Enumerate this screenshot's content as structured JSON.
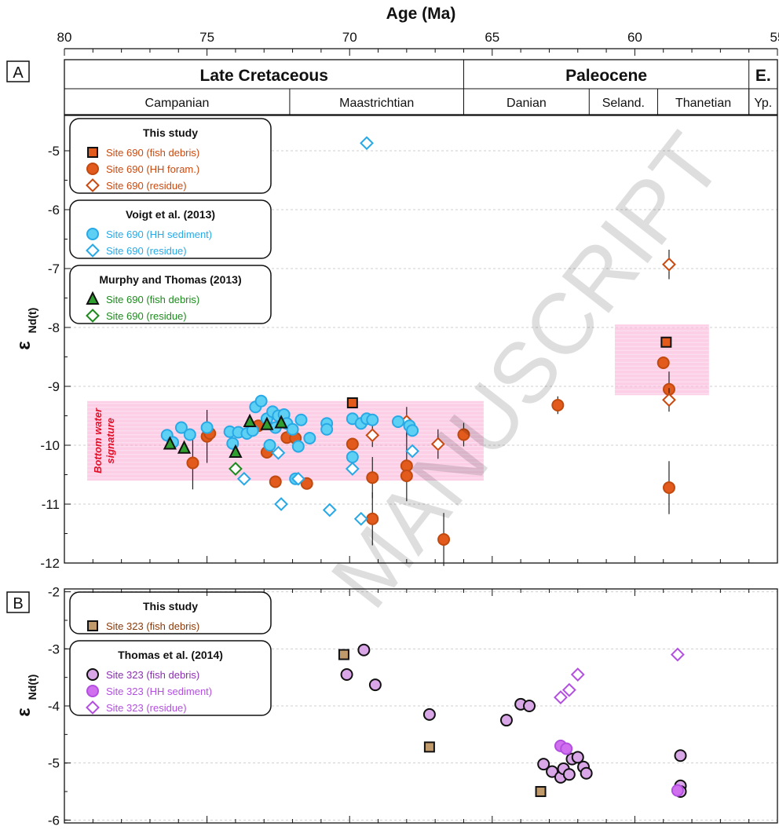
{
  "watermark": "MANUSCRIPT",
  "chart_data": [
    {
      "panel": "A",
      "type": "scatter",
      "x_axis_label": "Age (Ma)",
      "x_ticks": [
        80,
        75,
        70,
        65,
        60,
        55
      ],
      "xlim": [
        80,
        55
      ],
      "ylabel_main": "ε",
      "ylabel_sub": "Nd(t)",
      "y_ticks": [
        -5,
        -6,
        -7,
        -8,
        -9,
        -10,
        -11,
        -12
      ],
      "ylim": [
        -12,
        -4.4
      ],
      "grid": "horizontal",
      "legend_placement": "left",
      "epochs": [
        {
          "label": "Late Cretaceous",
          "from": 80,
          "to": 66
        },
        {
          "label": "Paleocene",
          "from": 66,
          "to": 56
        },
        {
          "label": "E.",
          "from": 56,
          "to": 55
        }
      ],
      "stages": [
        {
          "label": "Campanian",
          "from": 80,
          "to": 72.1
        },
        {
          "label": "Maastrichtian",
          "from": 72.1,
          "to": 66
        },
        {
          "label": "Danian",
          "from": 66,
          "to": 61.6
        },
        {
          "label": "Seland.",
          "from": 61.6,
          "to": 59.2
        },
        {
          "label": "Thanetian",
          "from": 59.2,
          "to": 56
        },
        {
          "label": "Yp.",
          "from": 56,
          "to": 55
        }
      ],
      "bands": [
        {
          "x": [
            79.2,
            65.3
          ],
          "y": [
            -10.6,
            -9.25
          ],
          "label": "Bottom water signature",
          "label_line1": "Bottom water",
          "label_line2": "signature"
        },
        {
          "x": [
            60.7,
            57.4
          ],
          "y": [
            -9.15,
            -7.95
          ]
        }
      ],
      "legend_groups": [
        {
          "title": "This study",
          "entries": [
            {
              "label": "Site 690 (fish debris)",
              "color": "#c94a10"
            },
            {
              "label": "Site 690 (HH foram.)",
              "color": "#c94a10"
            },
            {
              "label": "Site 690 (residue)",
              "color": "#c94a10"
            }
          ]
        },
        {
          "title": "Voigt et al. (2013)",
          "entries": [
            {
              "label": "Site 690 (HH sediment)",
              "color": "#28a9e6"
            },
            {
              "label": "Site 690 (residue)",
              "color": "#28a9e6"
            }
          ]
        },
        {
          "title": "Murphy and Thomas (2013)",
          "entries": [
            {
              "label": "Site 690 (fish debris)",
              "color": "#1e8a1e"
            },
            {
              "label": "Site 690 (residue)",
              "color": "#1e8a1e"
            }
          ]
        }
      ],
      "series": [
        {
          "name": "Site 690 (fish debris)",
          "source": "This study",
          "marker": "square",
          "fill": "#e25a1c",
          "stroke": "#111111",
          "points": [
            {
              "x": 69.9,
              "y": -9.28
            },
            {
              "x": 58.9,
              "y": -8.25
            }
          ]
        },
        {
          "name": "Site 690 (HH foram.)",
          "source": "This study",
          "marker": "circle",
          "fill": "#e25a1c",
          "stroke": "#c04a10",
          "points": [
            {
              "x": 75.5,
              "y": -10.3,
              "err": 0.45
            },
            {
              "x": 75.0,
              "y": -9.85,
              "err": 0.45
            },
            {
              "x": 74.9,
              "y": -9.8
            },
            {
              "x": 73.2,
              "y": -9.67
            },
            {
              "x": 72.9,
              "y": -10.12
            },
            {
              "x": 72.6,
              "y": -10.62
            },
            {
              "x": 72.2,
              "y": -9.87
            },
            {
              "x": 71.9,
              "y": -9.88
            },
            {
              "x": 71.5,
              "y": -10.65
            },
            {
              "x": 69.9,
              "y": -9.98
            },
            {
              "x": 69.2,
              "y": -10.55,
              "err": 0.35
            },
            {
              "x": 69.2,
              "y": -11.25,
              "err": 0.45
            },
            {
              "x": 68.0,
              "y": -10.35,
              "err": 0.6
            },
            {
              "x": 68.0,
              "y": -10.52
            },
            {
              "x": 66.7,
              "y": -11.6,
              "err": 0.45
            },
            {
              "x": 66.0,
              "y": -9.82,
              "err": 0.2
            },
            {
              "x": 62.7,
              "y": -9.32,
              "err": 0.15
            },
            {
              "x": 59.0,
              "y": -8.6
            },
            {
              "x": 58.8,
              "y": -9.05,
              "err": 0.3
            },
            {
              "x": 58.8,
              "y": -10.72,
              "err": 0.45
            }
          ]
        },
        {
          "name": "Site 690 (residue)",
          "source": "This study",
          "marker": "diamond",
          "fill": "#ffffff",
          "stroke": "#c94a10",
          "points": [
            {
              "x": 69.2,
              "y": -9.83,
              "err": 0.2
            },
            {
              "x": 68.0,
              "y": -9.6,
              "err": 0.25
            },
            {
              "x": 66.9,
              "y": -9.98,
              "err": 0.25
            },
            {
              "x": 58.8,
              "y": -6.93,
              "err": 0.25
            },
            {
              "x": 58.8,
              "y": -9.23,
              "err": 0.2
            }
          ]
        },
        {
          "name": "Site 690 (HH sediment)",
          "source": "Voigt et al. (2013)",
          "marker": "circle",
          "fill": "#5ed0f4",
          "stroke": "#28a9e6",
          "points": [
            {
              "x": 76.4,
              "y": -9.83
            },
            {
              "x": 76.2,
              "y": -9.95
            },
            {
              "x": 75.9,
              "y": -9.7
            },
            {
              "x": 75.6,
              "y": -9.82
            },
            {
              "x": 75.0,
              "y": -9.7
            },
            {
              "x": 74.2,
              "y": -9.77
            },
            {
              "x": 74.1,
              "y": -9.97
            },
            {
              "x": 73.9,
              "y": -9.78
            },
            {
              "x": 73.6,
              "y": -9.8
            },
            {
              "x": 73.4,
              "y": -9.75
            },
            {
              "x": 73.3,
              "y": -9.35
            },
            {
              "x": 73.1,
              "y": -9.25
            },
            {
              "x": 72.9,
              "y": -9.55
            },
            {
              "x": 72.8,
              "y": -10.0
            },
            {
              "x": 72.7,
              "y": -9.43
            },
            {
              "x": 72.6,
              "y": -9.7
            },
            {
              "x": 72.5,
              "y": -9.5
            },
            {
              "x": 72.3,
              "y": -9.48
            },
            {
              "x": 72.2,
              "y": -9.63
            },
            {
              "x": 72.0,
              "y": -9.73
            },
            {
              "x": 71.8,
              "y": -10.02
            },
            {
              "x": 71.7,
              "y": -9.57
            },
            {
              "x": 71.4,
              "y": -9.88
            },
            {
              "x": 71.9,
              "y": -10.57
            },
            {
              "x": 70.8,
              "y": -9.63
            },
            {
              "x": 70.8,
              "y": -9.73
            },
            {
              "x": 69.9,
              "y": -9.55
            },
            {
              "x": 69.9,
              "y": -10.2
            },
            {
              "x": 69.6,
              "y": -9.63
            },
            {
              "x": 69.4,
              "y": -9.55
            },
            {
              "x": 69.2,
              "y": -9.57
            },
            {
              "x": 68.3,
              "y": -9.6
            },
            {
              "x": 67.9,
              "y": -9.67
            },
            {
              "x": 67.8,
              "y": -9.75
            }
          ]
        },
        {
          "name": "Site 690 (residue)",
          "source": "Voigt et al. (2013)",
          "marker": "diamond",
          "fill": "#ffffff",
          "stroke": "#28a9e6",
          "points": [
            {
              "x": 69.4,
              "y": -4.87
            },
            {
              "x": 73.7,
              "y": -10.57
            },
            {
              "x": 72.5,
              "y": -10.13
            },
            {
              "x": 72.4,
              "y": -11.0
            },
            {
              "x": 71.8,
              "y": -10.57
            },
            {
              "x": 70.7,
              "y": -11.1
            },
            {
              "x": 69.9,
              "y": -10.4
            },
            {
              "x": 69.6,
              "y": -11.25
            },
            {
              "x": 67.8,
              "y": -10.1
            }
          ]
        },
        {
          "name": "Site 690 (fish debris)",
          "source": "Murphy and Thomas (2013)",
          "marker": "triangle",
          "fill": "#2fa02f",
          "stroke": "#111111",
          "points": [
            {
              "x": 76.3,
              "y": -9.98
            },
            {
              "x": 75.8,
              "y": -10.05
            },
            {
              "x": 74.0,
              "y": -10.12
            },
            {
              "x": 73.5,
              "y": -9.6
            },
            {
              "x": 72.9,
              "y": -9.65
            },
            {
              "x": 72.4,
              "y": -9.62
            }
          ]
        },
        {
          "name": "Site 690 (residue)",
          "source": "Murphy and Thomas (2013)",
          "marker": "diamond",
          "fill": "#ffffff",
          "stroke": "#1e8a1e",
          "points": [
            {
              "x": 74.0,
              "y": -10.4
            }
          ]
        }
      ]
    },
    {
      "panel": "B",
      "type": "scatter",
      "ylabel_main": "ε",
      "ylabel_sub": "Nd(t)",
      "y_ticks": [
        -2,
        -3,
        -4,
        -5,
        -6
      ],
      "ylim": [
        -6.05,
        -1.95
      ],
      "xlim": [
        80,
        55
      ],
      "grid": "horizontal",
      "legend_placement": "left",
      "legend_groups": [
        {
          "title": "This study",
          "entries": [
            {
              "label": "Site 323 (fish debris)",
              "color": "#8a3a0a"
            }
          ]
        },
        {
          "title": "Thomas et al. (2014)",
          "entries": [
            {
              "label": "Site 323 (fish debris)",
              "color": "#8a2fb0"
            },
            {
              "label": "Site 323 (HH sediment)",
              "color": "#b34fe0"
            },
            {
              "label": "Site 323 (residue)",
              "color": "#b34fe0"
            }
          ]
        }
      ],
      "series": [
        {
          "name": "Site 323 (fish debris)",
          "source": "This study",
          "marker": "square",
          "fill": "#c19a6b",
          "stroke": "#111111",
          "points": [
            {
              "x": 70.2,
              "y": -3.1
            },
            {
              "x": 67.2,
              "y": -4.72
            },
            {
              "x": 63.3,
              "y": -5.5
            }
          ]
        },
        {
          "name": "Site 323 (fish debris)",
          "source": "Thomas et al. (2014)",
          "marker": "circle",
          "fill": "#d9a6e8",
          "stroke": "#111111",
          "points": [
            {
              "x": 70.1,
              "y": -3.45
            },
            {
              "x": 69.5,
              "y": -3.02
            },
            {
              "x": 69.1,
              "y": -3.63
            },
            {
              "x": 67.2,
              "y": -4.15
            },
            {
              "x": 64.5,
              "y": -4.25
            },
            {
              "x": 64.0,
              "y": -3.97
            },
            {
              "x": 63.7,
              "y": -4.0
            },
            {
              "x": 63.2,
              "y": -5.02
            },
            {
              "x": 62.9,
              "y": -5.15
            },
            {
              "x": 62.6,
              "y": -5.25
            },
            {
              "x": 62.5,
              "y": -5.1
            },
            {
              "x": 62.3,
              "y": -5.2
            },
            {
              "x": 62.2,
              "y": -4.93
            },
            {
              "x": 62.0,
              "y": -4.9
            },
            {
              "x": 61.8,
              "y": -5.07
            },
            {
              "x": 61.7,
              "y": -5.18
            },
            {
              "x": 58.4,
              "y": -4.87
            },
            {
              "x": 58.4,
              "y": -5.4
            },
            {
              "x": 58.4,
              "y": -5.5
            }
          ]
        },
        {
          "name": "Site 323 (HH sediment)",
          "source": "Thomas et al. (2014)",
          "marker": "circle",
          "fill": "#d070ef",
          "stroke": "#b34fe0",
          "points": [
            {
              "x": 62.6,
              "y": -4.7
            },
            {
              "x": 62.4,
              "y": -4.75
            },
            {
              "x": 58.5,
              "y": -5.48
            }
          ]
        },
        {
          "name": "Site 323 (residue)",
          "source": "Thomas et al. (2014)",
          "marker": "diamond",
          "fill": "#ffffff",
          "stroke": "#b34fe0",
          "points": [
            {
              "x": 62.6,
              "y": -3.85
            },
            {
              "x": 62.3,
              "y": -3.72
            },
            {
              "x": 62.0,
              "y": -3.45
            },
            {
              "x": 58.5,
              "y": -3.1
            }
          ]
        }
      ]
    }
  ]
}
